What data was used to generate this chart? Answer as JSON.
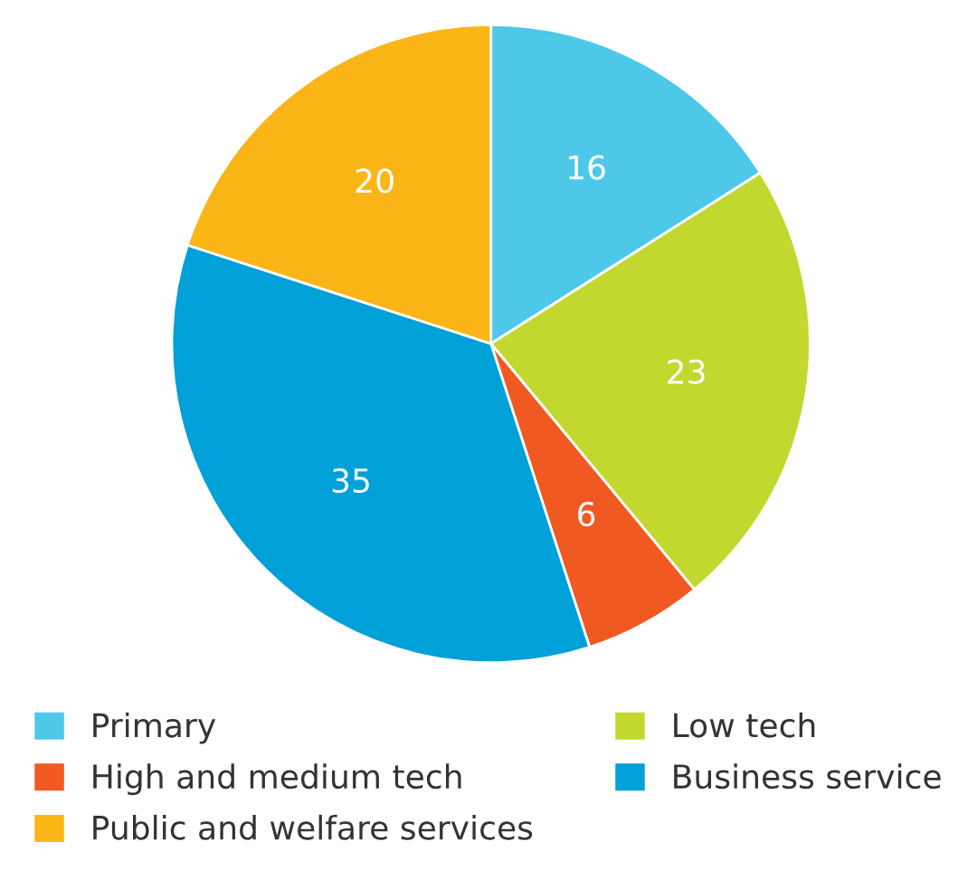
{
  "chart_data": {
    "type": "pie",
    "categories": [
      "Primary",
      "Low tech",
      "High and medium tech",
      "Business service",
      "Public and welfare services"
    ],
    "values": [
      16,
      23,
      6,
      35,
      20
    ],
    "colors": [
      "#4ec8e8",
      "#c2d82e",
      "#f05a22",
      "#00a0d8",
      "#fbb516"
    ],
    "data_labels": true,
    "legend": "bottom"
  }
}
